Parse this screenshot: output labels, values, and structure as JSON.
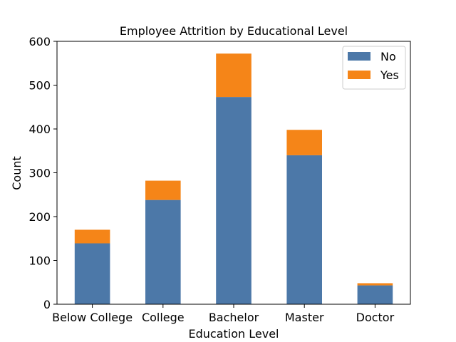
{
  "chart_data": {
    "type": "bar",
    "stacked": true,
    "title": "Employee Attrition by Educational Level",
    "xlabel": "Education Level",
    "ylabel": "Count",
    "categories": [
      "Below College",
      "College",
      "Bachelor",
      "Master",
      "Doctor"
    ],
    "series": [
      {
        "name": "No",
        "color": "#4c78a8",
        "values": [
          139,
          238,
          473,
          340,
          43
        ]
      },
      {
        "name": "Yes",
        "color": "#f58518",
        "values": [
          31,
          44,
          99,
          58,
          5
        ]
      }
    ],
    "ylim": [
      0,
      600
    ],
    "yticks": [
      0,
      100,
      200,
      300,
      400,
      500,
      600
    ],
    "grid": false,
    "legend_position": "top-right"
  }
}
